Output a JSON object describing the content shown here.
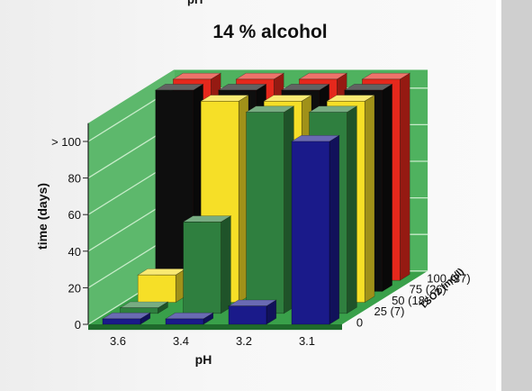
{
  "page": {
    "top_partial_label": "pH"
  },
  "chart_data": {
    "type": "bar",
    "subtype": "3d-grouped",
    "title": "14 % alcohol",
    "xlabel": "pH",
    "ylabel": "time (days)",
    "zlabel": "TSO2 (mg/l)",
    "categories": [
      "3.6",
      "3.4",
      "3.2",
      "3.1"
    ],
    "ylim": [
      0,
      100
    ],
    "yticks": [
      {
        "value": 0,
        "label": "0"
      },
      {
        "value": 20,
        "label": "20"
      },
      {
        "value": 40,
        "label": "40"
      },
      {
        "value": 60,
        "label": "60"
      },
      {
        "value": 80,
        "label": "80"
      },
      {
        "value": 100,
        "label": "> 100"
      }
    ],
    "grid": true,
    "series": [
      {
        "name": "0",
        "color": "#1a1a8a",
        "values": [
          3,
          3,
          10,
          100
        ]
      },
      {
        "name": "25 (7)",
        "color": "#2f7f3f",
        "values": [
          3,
          50,
          110,
          110
        ]
      },
      {
        "name": "50 (18)",
        "color": "#f6df27",
        "values": [
          15,
          110,
          110,
          110
        ]
      },
      {
        "name": "75 (26)",
        "color": "#0e0e0e",
        "values": [
          110,
          110,
          110,
          110
        ]
      },
      {
        "name": "100 (37)",
        "color": "#e5281c",
        "values": [
          110,
          110,
          110,
          110
        ]
      }
    ],
    "colors": {
      "back_wall": "#4fb25f",
      "floor": "#39a04a",
      "grid": "#c7ecc9"
    }
  }
}
